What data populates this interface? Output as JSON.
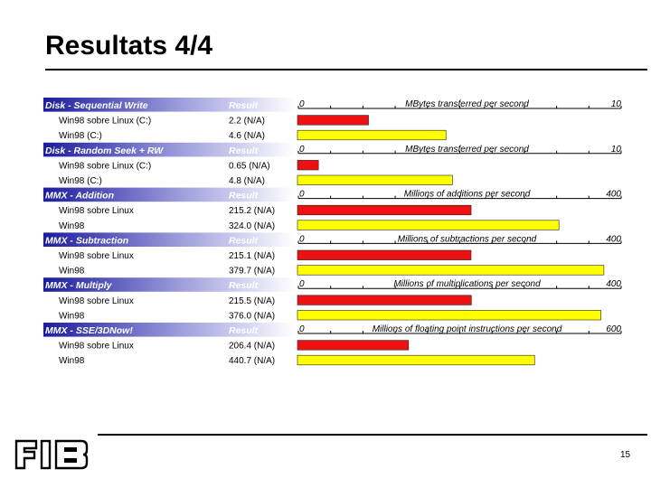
{
  "slide": {
    "title": "Resultats 4/4",
    "page_number": "15",
    "logo_text": "FIB"
  },
  "colors": {
    "header_dark": "#1c1c9c",
    "bar_red": "#ee1111",
    "bar_yellow": "#ffff00",
    "bar_border": "#222222"
  },
  "chart_data": {
    "type": "bar",
    "orientation": "horizontal",
    "result_header": "Result",
    "sections": [
      {
        "name": "Disk - Sequential Write",
        "axis_min_label": "0",
        "axis_max_label": "10",
        "axis_max": 10,
        "unit": "MBytes transferred per second",
        "rows": [
          {
            "label": "Win98 sobre Linux (C:)",
            "result": "2.2 (N/A)",
            "value": 2.2,
            "color": "red"
          },
          {
            "label": "Win98 (C:)",
            "result": "4.6 (N/A)",
            "value": 4.6,
            "color": "yellow"
          }
        ]
      },
      {
        "name": "Disk - Random Seek + RW",
        "axis_min_label": "0",
        "axis_max_label": "10",
        "axis_max": 10,
        "unit": "MBytes transferred per second",
        "rows": [
          {
            "label": "Win98 sobre Linux (C:)",
            "result": "0.65 (N/A)",
            "value": 0.65,
            "color": "red"
          },
          {
            "label": "Win98 (C:)",
            "result": "4.8 (N/A)",
            "value": 4.8,
            "color": "yellow"
          }
        ]
      },
      {
        "name": "MMX - Addition",
        "axis_min_label": "0",
        "axis_max_label": "400",
        "axis_max": 400,
        "unit": "Millions of additions per second",
        "rows": [
          {
            "label": "Win98 sobre Linux",
            "result": "215.2 (N/A)",
            "value": 215.2,
            "color": "red"
          },
          {
            "label": "Win98",
            "result": "324.0 (N/A)",
            "value": 324.0,
            "color": "yellow"
          }
        ]
      },
      {
        "name": "MMX - Subtraction",
        "axis_min_label": "0",
        "axis_max_label": "400",
        "axis_max": 400,
        "unit": "Millions of subtractions per second",
        "rows": [
          {
            "label": "Win98 sobre Linux",
            "result": "215.1 (N/A)",
            "value": 215.1,
            "color": "red"
          },
          {
            "label": "Win98",
            "result": "379.7 (N/A)",
            "value": 379.7,
            "color": "yellow"
          }
        ]
      },
      {
        "name": "MMX - Multiply",
        "axis_min_label": "0",
        "axis_max_label": "400",
        "axis_max": 400,
        "unit": "Millions of multiplications per second",
        "rows": [
          {
            "label": "Win98 sobre Linux",
            "result": "215.5 (N/A)",
            "value": 215.5,
            "color": "red"
          },
          {
            "label": "Win98",
            "result": "376.0 (N/A)",
            "value": 376.0,
            "color": "yellow"
          }
        ]
      },
      {
        "name": "MMX - SSE/3DNow!",
        "axis_min_label": "0",
        "axis_max_label": "600",
        "axis_max": 600,
        "unit": "Millions of floating point instructions per second",
        "rows": [
          {
            "label": "Win98 sobre Linux",
            "result": "206.4 (N/A)",
            "value": 206.4,
            "color": "red"
          },
          {
            "label": "Win98",
            "result": "440.7 (N/A)",
            "value": 440.7,
            "color": "yellow"
          }
        ]
      }
    ]
  }
}
